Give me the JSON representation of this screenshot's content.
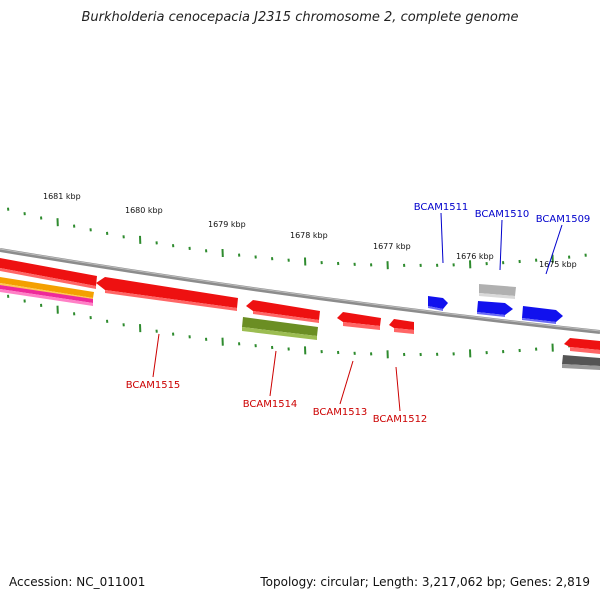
{
  "title": "Burkholderia cenocepacia J2315 chromosome 2, complete genome",
  "footer": {
    "accession": "Accession: NC_011001",
    "topology": "Topology: circular; Length: 3,217,062 bp; Genes: 2,819"
  },
  "colors": {
    "backbone": "#8c8c8c",
    "tick": "#2e8b2e",
    "gene_red": "#ee1111",
    "gene_blue": "#1111ee",
    "gene_olive": "#6b8e23",
    "gene_gray": "#b0b0b0",
    "gene_dark": "#555555",
    "gene_orange": "#f4a000",
    "gene_pink": "#ee2a9a",
    "label_red": "#cc0000",
    "label_blue": "#0000cc"
  },
  "kbp_labels": [
    "1681 kbp",
    "1680 kbp",
    "1679 kbp",
    "1678 kbp",
    "1677 kbp",
    "1676 kbp",
    "1675 kbp"
  ],
  "gene_labels_forward": [
    "BCAM1511",
    "BCAM1510",
    "BCAM1509"
  ],
  "gene_labels_reverse": [
    "BCAM1515",
    "BCAM1514",
    "BCAM1513",
    "BCAM1512"
  ]
}
